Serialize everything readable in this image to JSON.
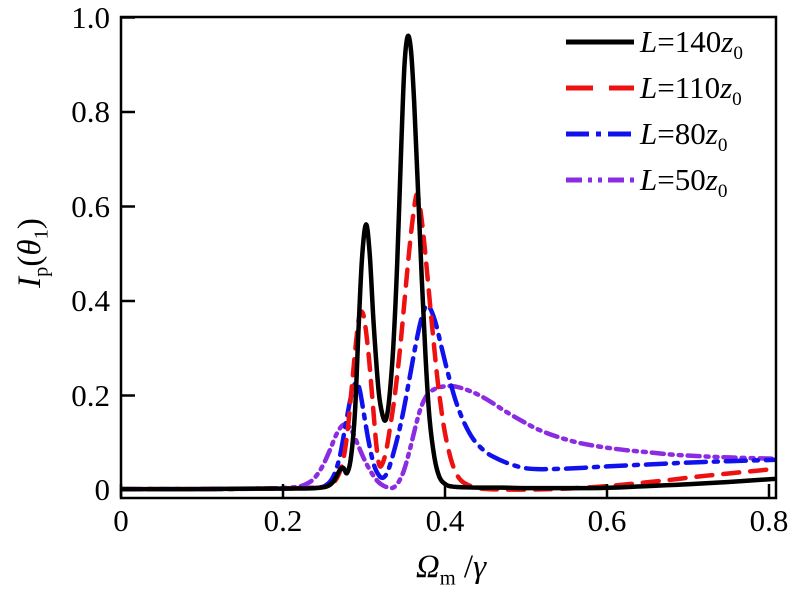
{
  "chart_data": {
    "type": "line",
    "title": "",
    "xlabel": "Ω_m /γ",
    "ylabel": "I_p(θ_1)",
    "xlim": [
      0,
      0.8
    ],
    "ylim": [
      0,
      1.0
    ],
    "grid": false,
    "legend_position": "top-right",
    "xticks": [
      0,
      0.2,
      0.4,
      0.6,
      0.8
    ],
    "xtick_labels": [
      "0",
      "0.2",
      "0.4",
      "0.6",
      "0.8"
    ],
    "yticks": [
      0,
      0.2,
      0.4,
      0.6,
      0.8,
      1.0
    ],
    "ytick_labels": [
      "0",
      "0.2",
      "0.4",
      "0.6",
      "0.8",
      "1.0"
    ],
    "axis_color": "#000000",
    "series": [
      {
        "label": "L=50z_0",
        "color": "#8b2be2",
        "style": "dash-dot-dot",
        "points": [
          [
            0.0,
            0.002
          ],
          [
            0.1,
            0.002
          ],
          [
            0.17,
            0.003
          ],
          [
            0.21,
            0.005
          ],
          [
            0.225,
            0.01
          ],
          [
            0.237,
            0.022
          ],
          [
            0.248,
            0.048
          ],
          [
            0.258,
            0.085
          ],
          [
            0.266,
            0.118
          ],
          [
            0.273,
            0.136
          ],
          [
            0.279,
            0.138
          ],
          [
            0.285,
            0.125
          ],
          [
            0.292,
            0.098
          ],
          [
            0.3,
            0.066
          ],
          [
            0.308,
            0.04
          ],
          [
            0.316,
            0.02
          ],
          [
            0.324,
            0.009
          ],
          [
            0.331,
            0.005
          ],
          [
            0.336,
            0.005
          ],
          [
            0.342,
            0.015
          ],
          [
            0.349,
            0.04
          ],
          [
            0.356,
            0.082
          ],
          [
            0.363,
            0.13
          ],
          [
            0.369,
            0.168
          ],
          [
            0.375,
            0.193
          ],
          [
            0.381,
            0.207
          ],
          [
            0.389,
            0.215
          ],
          [
            0.398,
            0.219
          ],
          [
            0.408,
            0.22
          ],
          [
            0.418,
            0.217
          ],
          [
            0.43,
            0.21
          ],
          [
            0.443,
            0.2
          ],
          [
            0.458,
            0.185
          ],
          [
            0.475,
            0.166
          ],
          [
            0.495,
            0.146
          ],
          [
            0.515,
            0.128
          ],
          [
            0.54,
            0.112
          ],
          [
            0.565,
            0.1
          ],
          [
            0.59,
            0.092
          ],
          [
            0.62,
            0.085
          ],
          [
            0.65,
            0.08
          ],
          [
            0.68,
            0.075
          ],
          [
            0.71,
            0.072
          ],
          [
            0.75,
            0.069
          ],
          [
            0.81,
            0.066
          ]
        ]
      },
      {
        "label": "L=80z_0",
        "color": "#1111ee",
        "style": "dash-dot",
        "points": [
          [
            0.0,
            0.002
          ],
          [
            0.1,
            0.002
          ],
          [
            0.19,
            0.003
          ],
          [
            0.24,
            0.005
          ],
          [
            0.253,
            0.01
          ],
          [
            0.262,
            0.028
          ],
          [
            0.27,
            0.07
          ],
          [
            0.277,
            0.135
          ],
          [
            0.283,
            0.19
          ],
          [
            0.288,
            0.222
          ],
          [
            0.2914,
            0.2265
          ],
          [
            0.295,
            0.21
          ],
          [
            0.3,
            0.16
          ],
          [
            0.306,
            0.1
          ],
          [
            0.312,
            0.055
          ],
          [
            0.318,
            0.032
          ],
          [
            0.3235,
            0.026
          ],
          [
            0.329,
            0.038
          ],
          [
            0.335,
            0.07
          ],
          [
            0.342,
            0.115
          ],
          [
            0.349,
            0.17
          ],
          [
            0.356,
            0.235
          ],
          [
            0.363,
            0.3
          ],
          [
            0.369,
            0.35
          ],
          [
            0.374,
            0.38
          ],
          [
            0.378,
            0.391
          ],
          [
            0.383,
            0.38
          ],
          [
            0.389,
            0.35
          ],
          [
            0.396,
            0.3
          ],
          [
            0.404,
            0.245
          ],
          [
            0.413,
            0.19
          ],
          [
            0.423,
            0.145
          ],
          [
            0.434,
            0.11
          ],
          [
            0.447,
            0.085
          ],
          [
            0.46,
            0.07
          ],
          [
            0.48,
            0.055
          ],
          [
            0.5,
            0.046
          ],
          [
            0.52,
            0.044
          ],
          [
            0.56,
            0.046
          ],
          [
            0.6,
            0.05
          ],
          [
            0.65,
            0.054
          ],
          [
            0.7,
            0.058
          ],
          [
            0.75,
            0.061
          ],
          [
            0.81,
            0.064
          ]
        ]
      },
      {
        "label": "L=110z_0",
        "color": "#ee1111",
        "style": "dashed",
        "points": [
          [
            0.0,
            0.002
          ],
          [
            0.1,
            0.002
          ],
          [
            0.18,
            0.003
          ],
          [
            0.23,
            0.004
          ],
          [
            0.25,
            0.006
          ],
          [
            0.26,
            0.012
          ],
          [
            0.268,
            0.03
          ],
          [
            0.2745,
            0.065
          ],
          [
            0.28,
            0.13
          ],
          [
            0.285,
            0.22
          ],
          [
            0.29,
            0.31
          ],
          [
            0.294,
            0.365
          ],
          [
            0.2975,
            0.377
          ],
          [
            0.301,
            0.355
          ],
          [
            0.306,
            0.28
          ],
          [
            0.311,
            0.18
          ],
          [
            0.315,
            0.1
          ],
          [
            0.3185,
            0.055
          ],
          [
            0.322,
            0.053
          ],
          [
            0.327,
            0.08
          ],
          [
            0.332,
            0.13
          ],
          [
            0.338,
            0.2
          ],
          [
            0.344,
            0.29
          ],
          [
            0.35,
            0.4
          ],
          [
            0.356,
            0.51
          ],
          [
            0.361,
            0.585
          ],
          [
            0.365,
            0.625
          ],
          [
            0.369,
            0.6
          ],
          [
            0.374,
            0.53
          ],
          [
            0.379,
            0.44
          ],
          [
            0.385,
            0.33
          ],
          [
            0.391,
            0.23
          ],
          [
            0.398,
            0.14
          ],
          [
            0.405,
            0.08
          ],
          [
            0.412,
            0.042
          ],
          [
            0.42,
            0.02
          ],
          [
            0.432,
            0.008
          ],
          [
            0.445,
            0.003
          ],
          [
            0.47,
            0.001
          ],
          [
            0.51,
            0.001
          ],
          [
            0.55,
            0.003
          ],
          [
            0.59,
            0.007
          ],
          [
            0.63,
            0.013
          ],
          [
            0.67,
            0.02
          ],
          [
            0.71,
            0.028
          ],
          [
            0.75,
            0.035
          ],
          [
            0.81,
            0.045
          ]
        ]
      },
      {
        "label": "L=140z_0",
        "color": "#000000",
        "style": "solid",
        "points": [
          [
            0.0,
            0.002
          ],
          [
            0.08,
            0.002
          ],
          [
            0.16,
            0.003
          ],
          [
            0.21,
            0.003
          ],
          [
            0.24,
            0.004
          ],
          [
            0.255,
            0.008
          ],
          [
            0.263,
            0.02
          ],
          [
            0.27,
            0.042
          ],
          [
            0.2745,
            0.047
          ],
          [
            0.279,
            0.036
          ],
          [
            0.284,
            0.07
          ],
          [
            0.289,
            0.17
          ],
          [
            0.293,
            0.33
          ],
          [
            0.2975,
            0.49
          ],
          [
            0.3025,
            0.562
          ],
          [
            0.307,
            0.5
          ],
          [
            0.312,
            0.35
          ],
          [
            0.318,
            0.21
          ],
          [
            0.323,
            0.158
          ],
          [
            0.327,
            0.149
          ],
          [
            0.331,
            0.19
          ],
          [
            0.336,
            0.3
          ],
          [
            0.341,
            0.48
          ],
          [
            0.346,
            0.73
          ],
          [
            0.35,
            0.9
          ],
          [
            0.354,
            0.96
          ],
          [
            0.358,
            0.93
          ],
          [
            0.362,
            0.82
          ],
          [
            0.366,
            0.66
          ],
          [
            0.371,
            0.46
          ],
          [
            0.376,
            0.28
          ],
          [
            0.381,
            0.15
          ],
          [
            0.387,
            0.068
          ],
          [
            0.393,
            0.028
          ],
          [
            0.4,
            0.013
          ],
          [
            0.41,
            0.007
          ],
          [
            0.44,
            0.005
          ],
          [
            0.47,
            0.005
          ],
          [
            0.5,
            0.004
          ],
          [
            0.54,
            0.004
          ],
          [
            0.58,
            0.004
          ],
          [
            0.62,
            0.006
          ],
          [
            0.66,
            0.009
          ],
          [
            0.7,
            0.012
          ],
          [
            0.75,
            0.017
          ],
          [
            0.81,
            0.024
          ]
        ]
      }
    ]
  }
}
